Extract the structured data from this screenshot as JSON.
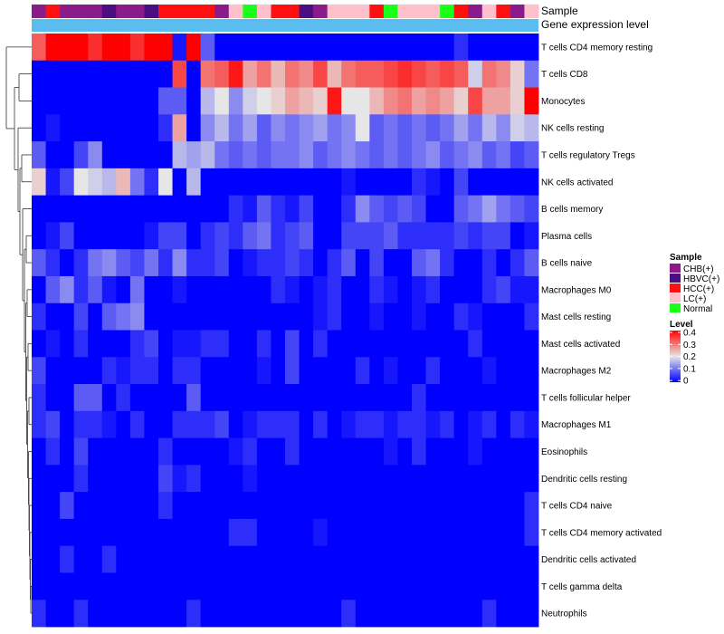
{
  "chart_data": {
    "type": "heatmap",
    "title": "",
    "annotations": {
      "sample_label": "Sample",
      "level_label": "Gene expression level"
    },
    "rows": [
      "T cells CD4 memory resting",
      "T cells CD8",
      "Monocytes",
      "NK cells resting",
      "T cells regulatory  Tregs",
      "NK cells activated",
      "B cells memory",
      "Plasma cells",
      "B cells naive",
      "Macrophages M0",
      "Mast cells resting",
      "Mast cells activated",
      "Macrophages M2",
      "T cells follicular helper",
      "Macrophages M1",
      "Eosinophils",
      "Dendritic cells resting",
      "T cells CD4 naive",
      "T cells CD4 memory activated",
      "Dendritic cells activated",
      "T cells gamma delta",
      "Neutrophils"
    ],
    "sample_groups": [
      "CHB(+)",
      "HCC(+)",
      "CHB(+)",
      "CHB(+)",
      "CHB(+)",
      "HBVC(+)",
      "CHB(+)",
      "CHB(+)",
      "HBVC(+)",
      "HCC(+)",
      "HCC(+)",
      "HCC(+)",
      "HCC(+)",
      "CHB(+)",
      "LC(+)",
      "Normal",
      "LC(+)",
      "HCC(+)",
      "HCC(+)",
      "HBVC(+)",
      "CHB(+)",
      "LC(+)",
      "LC(+)",
      "LC(+)",
      "HCC(+)",
      "Normal",
      "LC(+)",
      "LC(+)",
      "LC(+)",
      "Normal",
      "HCC(+)",
      "CHB(+)",
      "LC(+)",
      "HCC(+)",
      "CHB(+)",
      "LC(+)"
    ],
    "group_colors": {
      "CHB(+)": "#8B1A8B",
      "HBVC(+)": "#4B0F82",
      "HCC(+)": "#FF1010",
      "LC(+)": "#FFC0CB",
      "Normal": "#1AFF1A"
    },
    "level_bar_color": "#5BBCF0",
    "legend": {
      "sample_title": "Sample",
      "sample_entries": [
        "CHB(+)",
        "HBVC(+)",
        "HCC(+)",
        "LC(+)",
        "Normal"
      ],
      "level_title": "Level",
      "level_ticks": [
        "0.4",
        "0.3",
        "0.2",
        "0.1",
        "0"
      ],
      "level_range": [
        0,
        0.4
      ]
    },
    "values": [
      [
        0.32,
        0.4,
        0.4,
        0.4,
        0.36,
        0.4,
        0.4,
        0.36,
        0.4,
        0.4,
        0.02,
        0.4,
        0.08,
        0.0,
        0.0,
        0.0,
        0.0,
        0.0,
        0.0,
        0.0,
        0.0,
        0.0,
        0.0,
        0.0,
        0.0,
        0.0,
        0.0,
        0.0,
        0.0,
        0.0,
        0.04,
        0.0,
        0.0,
        0.0,
        0.0,
        0.0
      ],
      [
        0.0,
        0.0,
        0.0,
        0.0,
        0.0,
        0.0,
        0.0,
        0.0,
        0.0,
        0.0,
        0.34,
        0.0,
        0.3,
        0.32,
        0.38,
        0.26,
        0.3,
        0.24,
        0.3,
        0.28,
        0.34,
        0.24,
        0.3,
        0.32,
        0.32,
        0.34,
        0.36,
        0.34,
        0.32,
        0.34,
        0.32,
        0.18,
        0.3,
        0.28,
        0.22,
        0.1
      ],
      [
        0.0,
        0.0,
        0.0,
        0.0,
        0.0,
        0.0,
        0.0,
        0.0,
        0.0,
        0.08,
        0.08,
        0.0,
        0.16,
        0.2,
        0.12,
        0.18,
        0.2,
        0.22,
        0.26,
        0.24,
        0.22,
        0.38,
        0.2,
        0.2,
        0.24,
        0.28,
        0.3,
        0.26,
        0.28,
        0.26,
        0.22,
        0.34,
        0.26,
        0.26,
        0.22,
        0.4
      ],
      [
        0.0,
        0.02,
        0.0,
        0.0,
        0.0,
        0.0,
        0.0,
        0.0,
        0.0,
        0.04,
        0.26,
        0.0,
        0.12,
        0.16,
        0.1,
        0.14,
        0.08,
        0.12,
        0.1,
        0.12,
        0.14,
        0.1,
        0.12,
        0.2,
        0.08,
        0.1,
        0.08,
        0.1,
        0.08,
        0.1,
        0.14,
        0.1,
        0.16,
        0.12,
        0.18,
        0.16
      ],
      [
        0.08,
        0.0,
        0.0,
        0.06,
        0.12,
        0.0,
        0.0,
        0.0,
        0.0,
        0.0,
        0.16,
        0.14,
        0.16,
        0.1,
        0.08,
        0.1,
        0.08,
        0.1,
        0.1,
        0.12,
        0.08,
        0.1,
        0.12,
        0.1,
        0.08,
        0.1,
        0.08,
        0.1,
        0.12,
        0.08,
        0.1,
        0.12,
        0.08,
        0.1,
        0.06,
        0.08
      ],
      [
        0.22,
        0.02,
        0.06,
        0.2,
        0.18,
        0.16,
        0.24,
        0.1,
        0.04,
        0.2,
        0.0,
        0.16,
        0.0,
        0.0,
        0.0,
        0.0,
        0.0,
        0.0,
        0.0,
        0.0,
        0.0,
        0.0,
        0.02,
        0.0,
        0.0,
        0.0,
        0.0,
        0.04,
        0.02,
        0.0,
        0.06,
        0.0,
        0.0,
        0.0,
        0.0,
        0.0
      ],
      [
        0.0,
        0.0,
        0.0,
        0.0,
        0.0,
        0.0,
        0.0,
        0.0,
        0.0,
        0.0,
        0.0,
        0.0,
        0.0,
        0.0,
        0.04,
        0.02,
        0.08,
        0.04,
        0.02,
        0.06,
        0.0,
        0.0,
        0.04,
        0.12,
        0.08,
        0.06,
        0.08,
        0.06,
        0.0,
        0.0,
        0.08,
        0.1,
        0.14,
        0.1,
        0.08,
        0.06
      ],
      [
        0.0,
        0.02,
        0.06,
        0.0,
        0.0,
        0.0,
        0.0,
        0.0,
        0.02,
        0.06,
        0.06,
        0.0,
        0.04,
        0.06,
        0.04,
        0.08,
        0.1,
        0.04,
        0.06,
        0.08,
        0.0,
        0.0,
        0.06,
        0.06,
        0.06,
        0.08,
        0.04,
        0.04,
        0.04,
        0.04,
        0.06,
        0.04,
        0.06,
        0.06,
        0.0,
        0.02
      ],
      [
        0.08,
        0.04,
        0.0,
        0.04,
        0.1,
        0.12,
        0.08,
        0.06,
        0.1,
        0.04,
        0.12,
        0.04,
        0.04,
        0.06,
        0.0,
        0.02,
        0.04,
        0.04,
        0.06,
        0.04,
        0.0,
        0.04,
        0.08,
        0.0,
        0.06,
        0.0,
        0.0,
        0.08,
        0.1,
        0.04,
        0.0,
        0.0,
        0.04,
        0.0,
        0.04,
        0.08
      ],
      [
        0.0,
        0.08,
        0.12,
        0.04,
        0.08,
        0.02,
        0.0,
        0.1,
        0.0,
        0.0,
        0.02,
        0.0,
        0.0,
        0.0,
        0.0,
        0.0,
        0.0,
        0.04,
        0.02,
        0.0,
        0.02,
        0.04,
        0.0,
        0.0,
        0.04,
        0.02,
        0.0,
        0.02,
        0.04,
        0.0,
        0.0,
        0.0,
        0.04,
        0.06,
        0.02,
        0.02
      ],
      [
        0.04,
        0.0,
        0.0,
        0.06,
        0.0,
        0.08,
        0.1,
        0.12,
        0.0,
        0.0,
        0.0,
        0.0,
        0.0,
        0.0,
        0.0,
        0.0,
        0.0,
        0.0,
        0.0,
        0.0,
        0.02,
        0.04,
        0.0,
        0.0,
        0.02,
        0.0,
        0.0,
        0.02,
        0.0,
        0.0,
        0.04,
        0.02,
        0.0,
        0.0,
        0.0,
        0.04
      ],
      [
        0.0,
        0.02,
        0.0,
        0.04,
        0.0,
        0.0,
        0.0,
        0.04,
        0.06,
        0.0,
        0.02,
        0.02,
        0.04,
        0.04,
        0.0,
        0.0,
        0.04,
        0.0,
        0.06,
        0.0,
        0.04,
        0.0,
        0.0,
        0.0,
        0.0,
        0.0,
        0.0,
        0.0,
        0.0,
        0.0,
        0.0,
        0.04,
        0.0,
        0.0,
        0.0,
        0.0
      ],
      [
        0.06,
        0.0,
        0.0,
        0.0,
        0.0,
        0.04,
        0.02,
        0.04,
        0.04,
        0.0,
        0.04,
        0.04,
        0.0,
        0.0,
        0.0,
        0.0,
        0.02,
        0.0,
        0.06,
        0.0,
        0.0,
        0.0,
        0.0,
        0.04,
        0.0,
        0.02,
        0.0,
        0.0,
        0.04,
        0.0,
        0.0,
        0.0,
        0.02,
        0.0,
        0.0,
        0.0
      ],
      [
        0.04,
        0.0,
        0.0,
        0.08,
        0.08,
        0.0,
        0.04,
        0.0,
        0.0,
        0.0,
        0.0,
        0.08,
        0.0,
        0.0,
        0.0,
        0.0,
        0.0,
        0.0,
        0.0,
        0.0,
        0.0,
        0.0,
        0.0,
        0.0,
        0.0,
        0.0,
        0.0,
        0.04,
        0.0,
        0.0,
        0.0,
        0.0,
        0.0,
        0.0,
        0.0,
        0.0
      ],
      [
        0.04,
        0.06,
        0.0,
        0.04,
        0.04,
        0.02,
        0.0,
        0.04,
        0.0,
        0.0,
        0.04,
        0.04,
        0.04,
        0.06,
        0.0,
        0.02,
        0.04,
        0.04,
        0.04,
        0.0,
        0.04,
        0.0,
        0.02,
        0.04,
        0.04,
        0.02,
        0.04,
        0.04,
        0.02,
        0.04,
        0.0,
        0.02,
        0.04,
        0.0,
        0.04,
        0.02
      ],
      [
        0.0,
        0.04,
        0.0,
        0.06,
        0.0,
        0.0,
        0.0,
        0.0,
        0.0,
        0.04,
        0.0,
        0.0,
        0.0,
        0.0,
        0.02,
        0.04,
        0.0,
        0.0,
        0.04,
        0.0,
        0.0,
        0.0,
        0.0,
        0.0,
        0.0,
        0.02,
        0.0,
        0.04,
        0.0,
        0.0,
        0.0,
        0.02,
        0.0,
        0.0,
        0.0,
        0.0
      ],
      [
        0.0,
        0.0,
        0.0,
        0.04,
        0.0,
        0.0,
        0.0,
        0.0,
        0.0,
        0.06,
        0.02,
        0.04,
        0.0,
        0.0,
        0.0,
        0.02,
        0.0,
        0.0,
        0.0,
        0.0,
        0.0,
        0.0,
        0.0,
        0.0,
        0.0,
        0.0,
        0.0,
        0.0,
        0.0,
        0.0,
        0.0,
        0.0,
        0.0,
        0.0,
        0.0,
        0.0
      ],
      [
        0.0,
        0.0,
        0.06,
        0.0,
        0.0,
        0.0,
        0.0,
        0.0,
        0.0,
        0.04,
        0.0,
        0.0,
        0.0,
        0.0,
        0.0,
        0.0,
        0.0,
        0.0,
        0.0,
        0.0,
        0.0,
        0.0,
        0.0,
        0.0,
        0.0,
        0.0,
        0.0,
        0.0,
        0.0,
        0.0,
        0.0,
        0.0,
        0.0,
        0.0,
        0.0,
        0.04
      ],
      [
        0.0,
        0.0,
        0.0,
        0.0,
        0.0,
        0.0,
        0.0,
        0.0,
        0.0,
        0.0,
        0.0,
        0.0,
        0.0,
        0.0,
        0.04,
        0.04,
        0.0,
        0.0,
        0.0,
        0.0,
        0.02,
        0.0,
        0.0,
        0.0,
        0.0,
        0.0,
        0.0,
        0.0,
        0.0,
        0.0,
        0.0,
        0.0,
        0.0,
        0.0,
        0.0,
        0.04
      ],
      [
        0.0,
        0.0,
        0.04,
        0.0,
        0.0,
        0.04,
        0.0,
        0.0,
        0.0,
        0.0,
        0.0,
        0.0,
        0.0,
        0.0,
        0.0,
        0.0,
        0.0,
        0.0,
        0.0,
        0.0,
        0.0,
        0.0,
        0.0,
        0.0,
        0.0,
        0.0,
        0.0,
        0.0,
        0.0,
        0.0,
        0.0,
        0.0,
        0.0,
        0.0,
        0.0,
        0.0
      ],
      [
        0.0,
        0.0,
        0.0,
        0.0,
        0.0,
        0.0,
        0.0,
        0.0,
        0.0,
        0.0,
        0.0,
        0.0,
        0.0,
        0.0,
        0.0,
        0.0,
        0.0,
        0.0,
        0.0,
        0.0,
        0.0,
        0.0,
        0.0,
        0.0,
        0.0,
        0.0,
        0.0,
        0.0,
        0.0,
        0.0,
        0.0,
        0.0,
        0.0,
        0.0,
        0.0,
        0.0
      ],
      [
        0.04,
        0.0,
        0.0,
        0.04,
        0.0,
        0.0,
        0.0,
        0.0,
        0.0,
        0.0,
        0.0,
        0.04,
        0.0,
        0.0,
        0.0,
        0.0,
        0.0,
        0.0,
        0.0,
        0.0,
        0.0,
        0.0,
        0.04,
        0.0,
        0.0,
        0.0,
        0.0,
        0.0,
        0.0,
        0.0,
        0.0,
        0.0,
        0.04,
        0.0,
        0.0,
        0.0
      ]
    ]
  }
}
